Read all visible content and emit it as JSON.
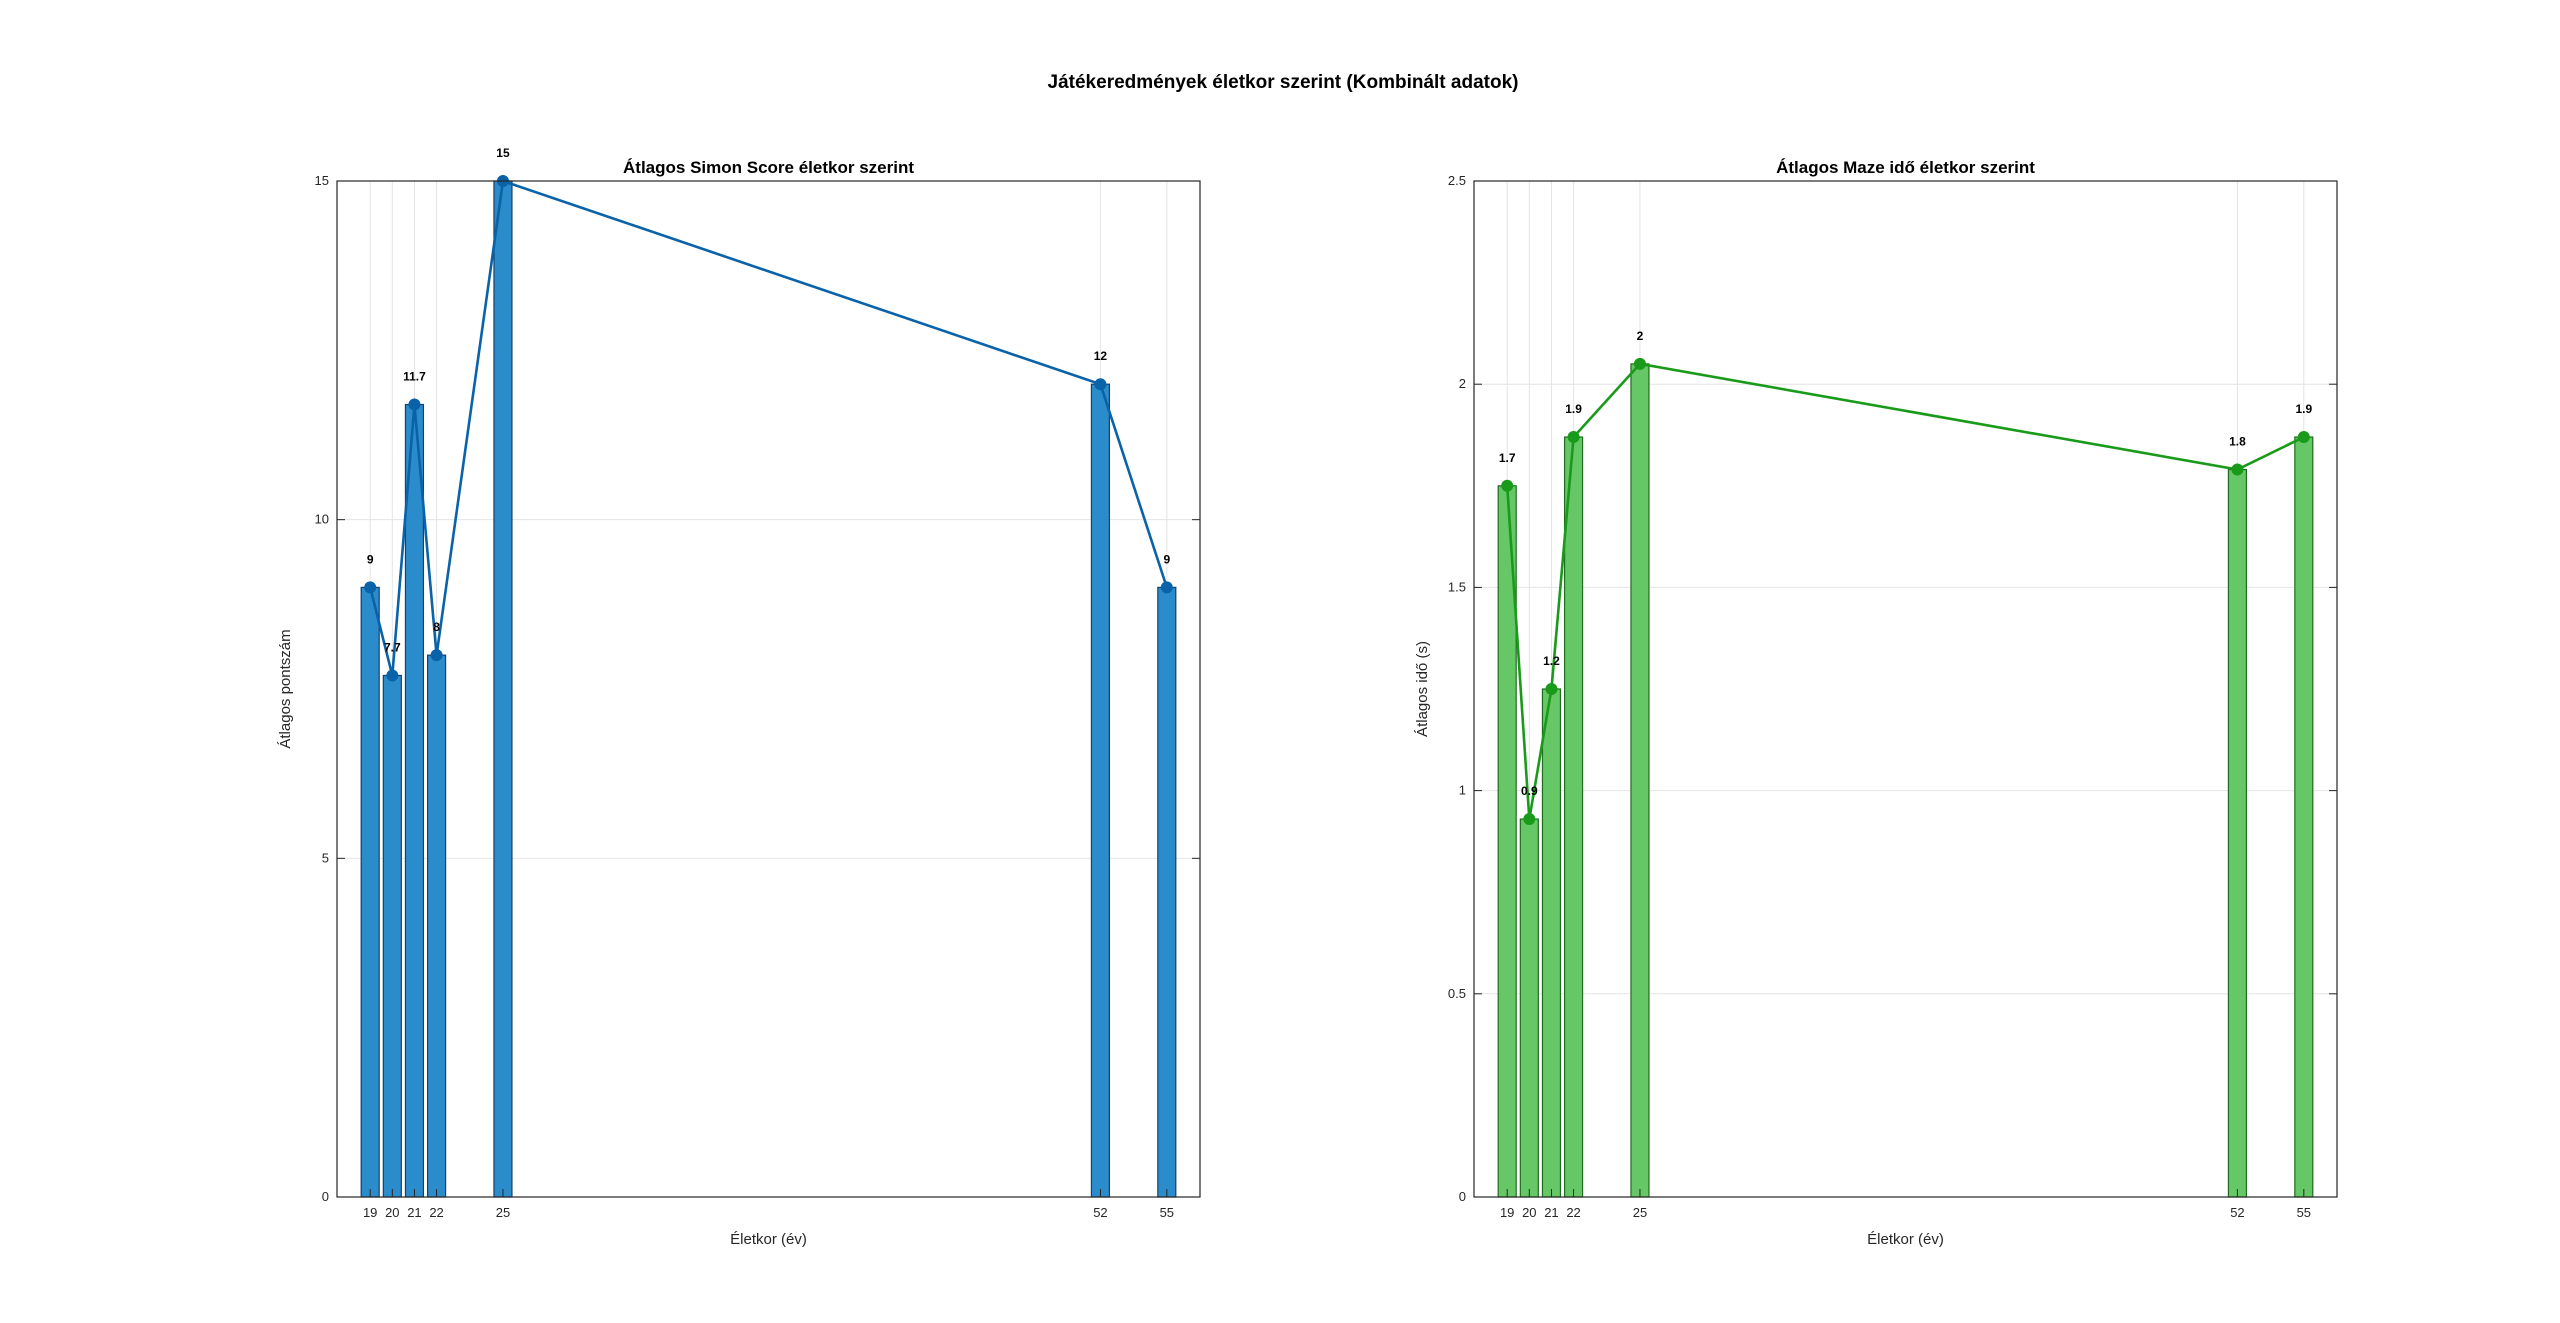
{
  "figure": {
    "title": "Játékeredmények életkor szerint (Kombinált adatok)"
  },
  "chart_data": [
    {
      "type": "bar",
      "overlay": "line-with-markers",
      "title": "Átlagos Simon Score életkor szerint",
      "xlabel": "Életkor (év)",
      "ylabel": "Átlagos pontszám",
      "x": [
        19,
        20,
        21,
        22,
        25,
        52,
        55
      ],
      "values": [
        9,
        7.7,
        11.7,
        8,
        15,
        12,
        9
      ],
      "value_labels": [
        "9",
        "7.7",
        "11.7",
        "8",
        "15",
        "12",
        "9"
      ],
      "xlim": [
        17.5,
        56.5
      ],
      "ylim": [
        0,
        15
      ],
      "yticks": [
        0,
        5,
        10,
        15
      ],
      "grid": true,
      "bar_color": "#2b8ccc",
      "bar_edge": "#1a3f66",
      "line_color": "#0a62a8",
      "marker_color": "#0a62a8"
    },
    {
      "type": "bar",
      "overlay": "line-with-markers",
      "title": "Átlagos Maze idő életkor szerint",
      "xlabel": "Életkor (év)",
      "ylabel": "Átlagos idő (s)",
      "x": [
        19,
        20,
        21,
        22,
        25,
        52,
        55
      ],
      "values": [
        1.75,
        0.93,
        1.25,
        1.87,
        2.05,
        1.79,
        1.87
      ],
      "value_labels": [
        "1.7",
        "0.9",
        "1.2",
        "1.9",
        "2",
        "1.8",
        "1.9"
      ],
      "xlim": [
        17.5,
        56.5
      ],
      "ylim": [
        0,
        2.5
      ],
      "yticks": [
        0,
        0.5,
        1,
        1.5,
        2,
        2.5
      ],
      "grid": true,
      "bar_color": "#66c766",
      "bar_edge": "#1f6b1f",
      "line_color": "#1a9a1a",
      "marker_color": "#1a9a1a"
    }
  ]
}
